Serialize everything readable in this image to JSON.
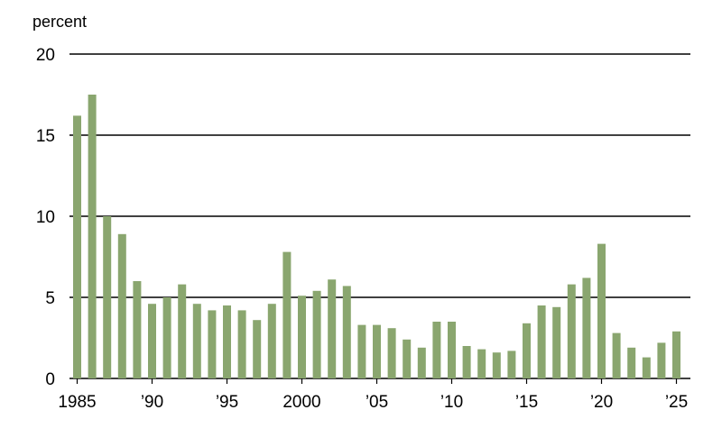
{
  "chart_data": {
    "type": "bar",
    "ylabel": "percent",
    "ylim": [
      0,
      20
    ],
    "y_ticks": [
      0,
      5,
      10,
      15,
      20
    ],
    "grid": "horizontal",
    "color": "#8aa66f",
    "x": [
      1985,
      1986,
      1987,
      1988,
      1989,
      1990,
      1991,
      1992,
      1993,
      1994,
      1995,
      1996,
      1997,
      1998,
      1999,
      2000,
      2001,
      2002,
      2003,
      2004,
      2005,
      2006,
      2007,
      2008,
      2009,
      2010,
      2011,
      2012,
      2013,
      2014,
      2015,
      2016,
      2017,
      2018,
      2019,
      2020,
      2021,
      2022,
      2023,
      2024,
      2025
    ],
    "values": [
      16.2,
      17.5,
      10.0,
      8.9,
      6.0,
      4.6,
      5.0,
      5.8,
      4.6,
      4.2,
      4.5,
      4.2,
      3.6,
      4.6,
      7.8,
      5.1,
      5.4,
      6.1,
      5.7,
      3.3,
      3.3,
      3.1,
      2.4,
      1.9,
      3.5,
      3.5,
      2.0,
      1.8,
      1.6,
      1.7,
      3.4,
      4.5,
      4.4,
      5.8,
      6.2,
      8.3,
      2.8,
      1.9,
      1.3,
      2.2,
      2.9
    ],
    "x_tick_labels": [
      {
        "year": 1985,
        "label": "1985"
      },
      {
        "year": 1990,
        "label": "’90"
      },
      {
        "year": 1995,
        "label": "’95"
      },
      {
        "year": 2000,
        "label": "2000"
      },
      {
        "year": 2005,
        "label": "’05"
      },
      {
        "year": 2010,
        "label": "’10"
      },
      {
        "year": 2015,
        "label": "’15"
      },
      {
        "year": 2020,
        "label": "’20"
      },
      {
        "year": 2025,
        "label": "’25"
      }
    ]
  }
}
